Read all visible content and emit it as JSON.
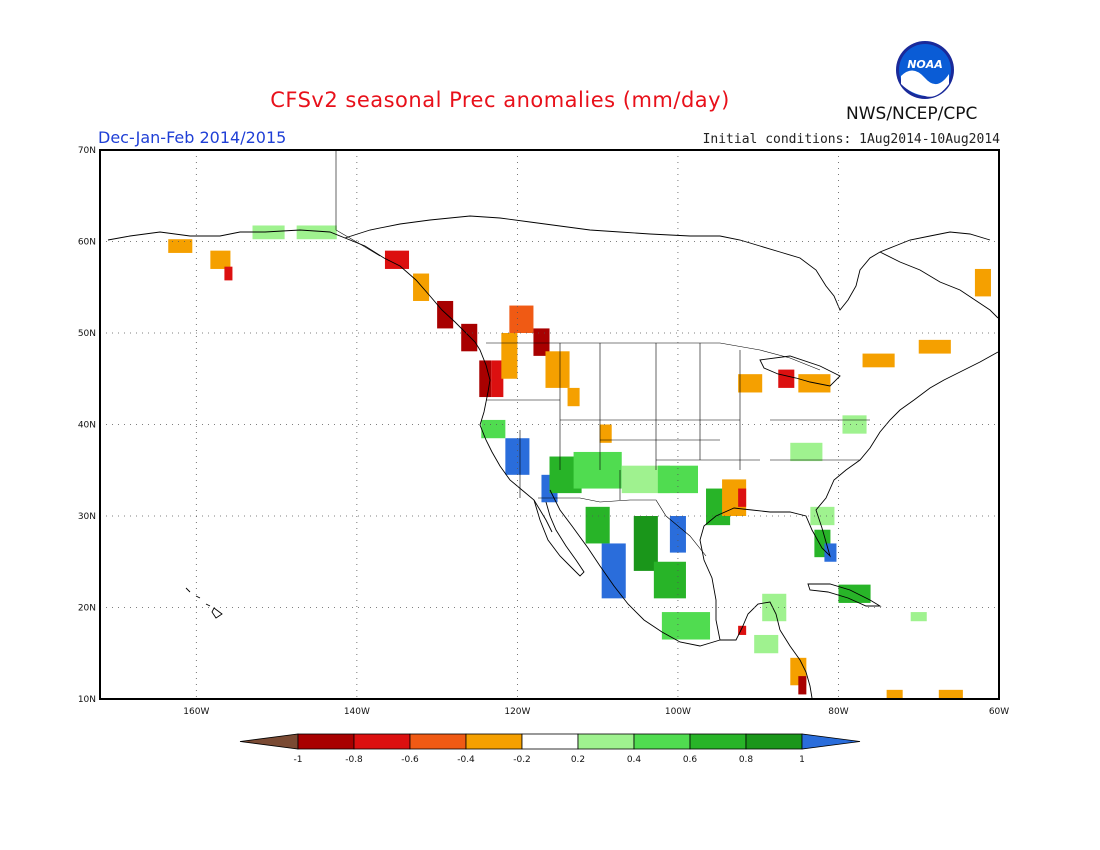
{
  "title": "CFSv2 seasonal Prec anomalies (mm/day)",
  "season": "Dec-Jan-Feb 2014/2015",
  "initial_conditions": "Initial conditions: 1Aug2014-10Aug2014",
  "agency": "NWS/NCEP/CPC",
  "logo_text": "NOAA",
  "map": {
    "lon_range": [
      -172,
      -60
    ],
    "lat_range": [
      10,
      70
    ],
    "lat_ticks": [
      "70N",
      "60N",
      "50N",
      "40N",
      "30N",
      "20N",
      "10N"
    ],
    "lon_ticks": [
      "160W",
      "140W",
      "120W",
      "100W",
      "80W",
      "60W"
    ],
    "grid": "dotted",
    "colors": {
      "d4": "#a80000",
      "d3": "#dc1010",
      "d2": "#f05a14",
      "d1": "#f5a000",
      "w1": "#9ff28f",
      "w2": "#50dc50",
      "w3": "#28b428",
      "w4": "#1a961a",
      "w5": "#2a6ddb"
    },
    "anomaly_cells": [
      {
        "lon": -162,
        "lat": 59.5,
        "c": "d1",
        "w": 3,
        "h": 1.5
      },
      {
        "lon": -157,
        "lat": 58,
        "c": "d1",
        "w": 2.5,
        "h": 2
      },
      {
        "lon": -156,
        "lat": 56.5,
        "c": "d3",
        "w": 1,
        "h": 1.5
      },
      {
        "lon": -151,
        "lat": 61,
        "c": "w1",
        "w": 4,
        "h": 1.5
      },
      {
        "lon": -145,
        "lat": 61,
        "c": "w1",
        "w": 5,
        "h": 1.5
      },
      {
        "lon": -135,
        "lat": 58,
        "c": "d3",
        "w": 3,
        "h": 2
      },
      {
        "lon": -132,
        "lat": 55,
        "c": "d1",
        "w": 2,
        "h": 3
      },
      {
        "lon": -129,
        "lat": 52,
        "c": "d4",
        "w": 2,
        "h": 3
      },
      {
        "lon": -126,
        "lat": 49.5,
        "c": "d4",
        "w": 2,
        "h": 3
      },
      {
        "lon": -124,
        "lat": 45,
        "c": "d4",
        "w": 1.5,
        "h": 4
      },
      {
        "lon": -122.5,
        "lat": 45,
        "c": "d3",
        "w": 1.5,
        "h": 4
      },
      {
        "lon": -121,
        "lat": 47.5,
        "c": "d1",
        "w": 2,
        "h": 5
      },
      {
        "lon": -119.5,
        "lat": 51.5,
        "c": "d2",
        "w": 3,
        "h": 3
      },
      {
        "lon": -117,
        "lat": 49,
        "c": "d4",
        "w": 2,
        "h": 3
      },
      {
        "lon": -115,
        "lat": 46,
        "c": "d1",
        "w": 3,
        "h": 4
      },
      {
        "lon": -113,
        "lat": 43,
        "c": "d1",
        "w": 1.5,
        "h": 2
      },
      {
        "lon": -109,
        "lat": 39,
        "c": "d1",
        "w": 1.5,
        "h": 2
      },
      {
        "lon": -123,
        "lat": 39.5,
        "c": "w2",
        "w": 3,
        "h": 2
      },
      {
        "lon": -120,
        "lat": 36.5,
        "c": "w5",
        "w": 3,
        "h": 4
      },
      {
        "lon": -116,
        "lat": 33,
        "c": "w5",
        "w": 2,
        "h": 3
      },
      {
        "lon": -114,
        "lat": 34.5,
        "c": "w3",
        "w": 4,
        "h": 4
      },
      {
        "lon": -110,
        "lat": 35,
        "c": "w2",
        "w": 6,
        "h": 4
      },
      {
        "lon": -104,
        "lat": 34,
        "c": "w1",
        "w": 6,
        "h": 3
      },
      {
        "lon": -100,
        "lat": 34,
        "c": "w2",
        "w": 5,
        "h": 3
      },
      {
        "lon": -110,
        "lat": 29,
        "c": "w3",
        "w": 3,
        "h": 4
      },
      {
        "lon": -108,
        "lat": 24,
        "c": "w5",
        "w": 3,
        "h": 6
      },
      {
        "lon": -104,
        "lat": 27,
        "c": "w4",
        "w": 3,
        "h": 6
      },
      {
        "lon": -100,
        "lat": 28,
        "c": "w5",
        "w": 2,
        "h": 4
      },
      {
        "lon": -101,
        "lat": 23,
        "c": "w3",
        "w": 4,
        "h": 4
      },
      {
        "lon": -99,
        "lat": 18,
        "c": "w2",
        "w": 6,
        "h": 3
      },
      {
        "lon": -95,
        "lat": 31,
        "c": "w3",
        "w": 3,
        "h": 4
      },
      {
        "lon": -93,
        "lat": 32,
        "c": "d1",
        "w": 3,
        "h": 4
      },
      {
        "lon": -92,
        "lat": 32,
        "c": "d3",
        "w": 1,
        "h": 2
      },
      {
        "lon": -91,
        "lat": 44.5,
        "c": "d1",
        "w": 3,
        "h": 2
      },
      {
        "lon": -86.5,
        "lat": 45,
        "c": "d3",
        "w": 2,
        "h": 2
      },
      {
        "lon": -83,
        "lat": 44.5,
        "c": "d1",
        "w": 4,
        "h": 2
      },
      {
        "lon": -75,
        "lat": 47,
        "c": "d1",
        "w": 4,
        "h": 1.5
      },
      {
        "lon": -68,
        "lat": 48.5,
        "c": "d1",
        "w": 4,
        "h": 1.5
      },
      {
        "lon": -62,
        "lat": 55.5,
        "c": "d1",
        "w": 2,
        "h": 3
      },
      {
        "lon": -82,
        "lat": 30,
        "c": "w1",
        "w": 3,
        "h": 2
      },
      {
        "lon": -82,
        "lat": 27,
        "c": "w3",
        "w": 2,
        "h": 3
      },
      {
        "lon": -81,
        "lat": 26,
        "c": "w5",
        "w": 1.5,
        "h": 2
      },
      {
        "lon": -84,
        "lat": 37,
        "c": "w1",
        "w": 4,
        "h": 2
      },
      {
        "lon": -78,
        "lat": 40,
        "c": "w1",
        "w": 3,
        "h": 2
      },
      {
        "lon": -78,
        "lat": 21.5,
        "c": "w3",
        "w": 4,
        "h": 2
      },
      {
        "lon": -88,
        "lat": 20,
        "c": "w1",
        "w": 3,
        "h": 3
      },
      {
        "lon": -92,
        "lat": 17.5,
        "c": "d3",
        "w": 1,
        "h": 1
      },
      {
        "lon": -89,
        "lat": 16,
        "c": "w1",
        "w": 3,
        "h": 2
      },
      {
        "lon": -85,
        "lat": 13,
        "c": "d1",
        "w": 2,
        "h": 3
      },
      {
        "lon": -84.5,
        "lat": 11.5,
        "c": "d4",
        "w": 1,
        "h": 2
      },
      {
        "lon": -73,
        "lat": 10.5,
        "c": "d1",
        "w": 2,
        "h": 1
      },
      {
        "lon": -66,
        "lat": 10.5,
        "c": "d1",
        "w": 3,
        "h": 1
      },
      {
        "lon": -70,
        "lat": 19,
        "c": "w1",
        "w": 2,
        "h": 1
      }
    ]
  },
  "colorbar": {
    "labels": [
      "-1",
      "-0.8",
      "-0.6",
      "-0.4",
      "-0.2",
      "0.2",
      "0.4",
      "0.6",
      "0.8",
      "1"
    ],
    "colors": [
      "#7a4a33",
      "#a80000",
      "#dc1010",
      "#f05a14",
      "#f5a000",
      "#ffffff",
      "#9ff28f",
      "#50dc50",
      "#28b428",
      "#1a961a",
      "#2a6ddb"
    ]
  }
}
